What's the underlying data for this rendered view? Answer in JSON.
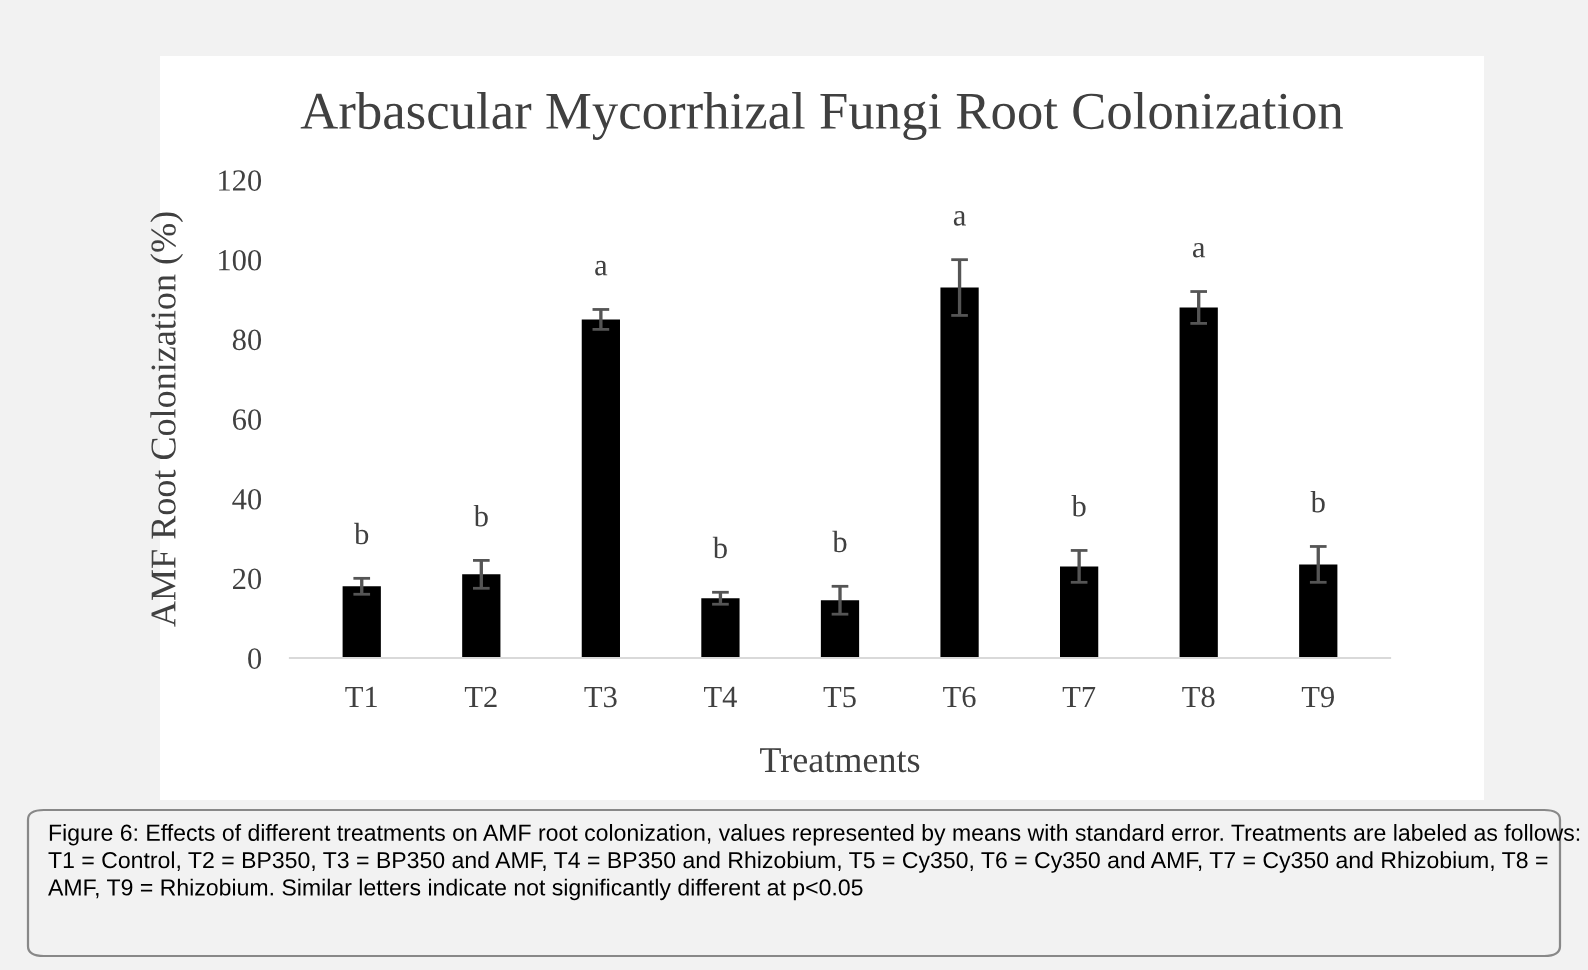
{
  "chart_data": {
    "type": "bar",
    "title": "Arbascular Mycorrhizal Fungi Root Colonization",
    "xlabel": "Treatments",
    "ylabel": "AMF Root Colonization (%)",
    "categories": [
      "T1",
      "T2",
      "T3",
      "T4",
      "T5",
      "T6",
      "T7",
      "T8",
      "T9"
    ],
    "values": [
      18,
      21,
      85,
      15,
      14.5,
      93,
      23,
      88,
      23.5
    ],
    "errors": [
      2,
      3.5,
      2.5,
      1.5,
      3.5,
      7,
      4,
      4,
      4.5
    ],
    "color": "#000000",
    "ylim": [
      0,
      120
    ],
    "yticks": [
      0,
      20,
      40,
      60,
      80,
      100,
      120
    ],
    "annotations": [
      "b",
      "b",
      "a",
      "b",
      "b",
      "a",
      "b",
      "a",
      "b",
      "Figure 6: Effects of different treatments on AMF root colonization, values represented by means with standard error. Treatments are labeled as follows: T1 = Control, T2 = BP350, T3 = BP350 and AMF, T4 = BP350 and Rhizobium, T5 = Cy350, T6 = Cy350 and AMF, T7 = Cy350 and Rhizobium, T8 = AMF, T9 = Rhizobium. Similar letters indicate not significantly different at p<0.05"
    ]
  }
}
